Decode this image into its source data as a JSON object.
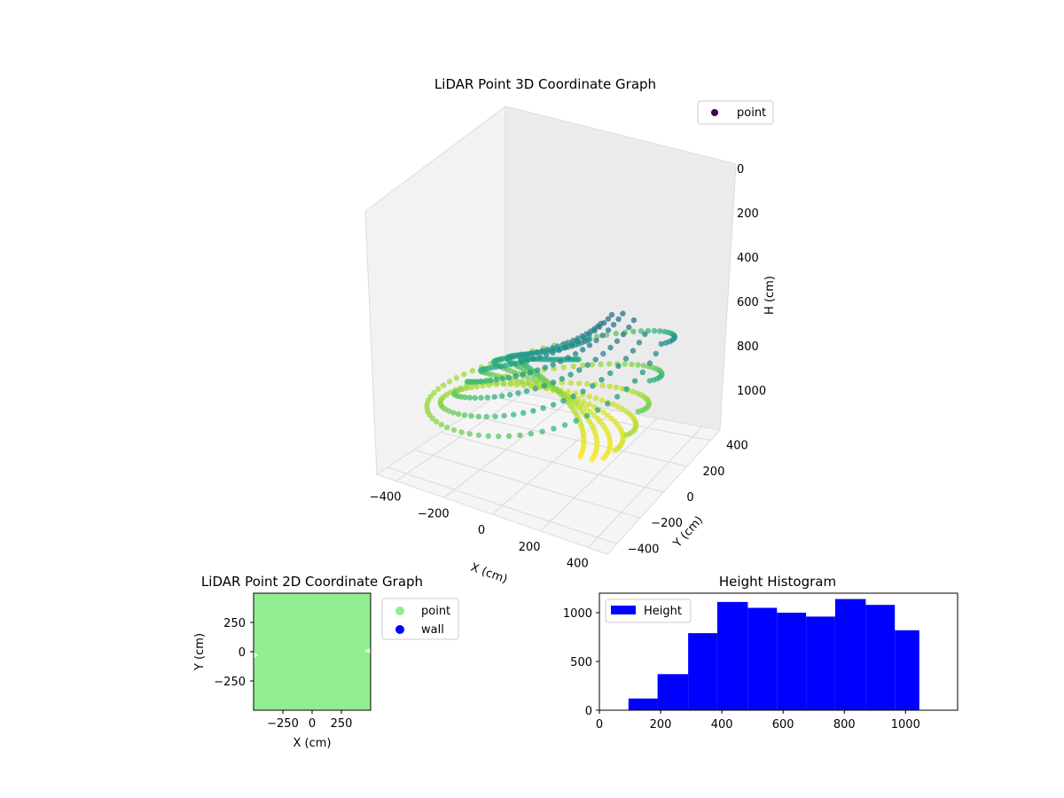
{
  "chart_data": [
    {
      "type": "scatter",
      "projection": "3d",
      "title": "LiDAR Point 3D Coordinate Graph",
      "xlabel": "X (cm)",
      "ylabel": "Y (cm)",
      "zlabel": "H (cm)",
      "xlim": [
        -480,
        480
      ],
      "ylim": [
        -480,
        480
      ],
      "zlim": [
        1150,
        0
      ],
      "x_ticks": [
        "−400",
        "−200",
        "0",
        "200",
        "400"
      ],
      "y_ticks": [
        "−400",
        "−200",
        "0",
        "200",
        "400"
      ],
      "z_ticks": [
        "0",
        "200",
        "400",
        "600",
        "800",
        "1000"
      ],
      "colormap": "viridis",
      "legend": {
        "position": "top-right",
        "entries": [
          {
            "label": "point",
            "color": "#440154"
          }
        ]
      },
      "grid": true,
      "series": [
        {
          "name": "point",
          "description_shape": "concentric bowl-like rings of LiDAR scan points",
          "rings": [
            {
              "radius": 470,
              "height_center": 80,
              "height_range": 960
            },
            {
              "radius": 420,
              "height_center": 160,
              "height_range": 900
            },
            {
              "radius": 370,
              "height_center": 240,
              "height_range": 840
            },
            {
              "radius": 320,
              "height_center": 320,
              "height_range": 780
            },
            {
              "radius": 270,
              "height_center": 400,
              "height_range": 720
            },
            {
              "radius": 220,
              "height_center": 480,
              "height_range": 660
            },
            {
              "radius": 170,
              "height_center": 560,
              "height_range": 600
            },
            {
              "radius": 120,
              "height_center": 640,
              "height_range": 540
            }
          ]
        }
      ]
    },
    {
      "type": "scatter",
      "title": "LiDAR Point 2D Coordinate Graph",
      "xlabel": "X (cm)",
      "ylabel": "Y (cm)",
      "xlim": [
        -500,
        500
      ],
      "ylim": [
        -500,
        500
      ],
      "x_ticks": [
        "−250",
        "0",
        "250"
      ],
      "y_ticks": [
        "250",
        "0",
        "−250"
      ],
      "legend": {
        "position": "outside-right",
        "entries": [
          {
            "label": "point",
            "color": "#90ee90"
          },
          {
            "label": "wall",
            "color": "#0000ff"
          }
        ]
      },
      "series": [
        {
          "name": "point",
          "color": "#90ee90",
          "fill": "full-area"
        },
        {
          "name": "wall",
          "color": "#0000ff",
          "points": []
        }
      ]
    },
    {
      "type": "bar",
      "title": "Height Histogram",
      "xlim": [
        0,
        1170
      ],
      "ylim": [
        0,
        1200
      ],
      "x_ticks": [
        "0",
        "200",
        "400",
        "600",
        "800",
        "1000"
      ],
      "y_ticks": [
        "0",
        "500",
        "1000"
      ],
      "legend": {
        "position": "top-left",
        "entries": [
          {
            "label": "Height",
            "color": "#0000ff"
          }
        ]
      },
      "bin_edges": [
        95,
        190,
        290,
        385,
        485,
        580,
        675,
        770,
        870,
        965,
        1045
      ],
      "series": [
        {
          "name": "Height",
          "color": "#0000ff",
          "values": [
            120,
            370,
            790,
            1110,
            1050,
            1000,
            960,
            1140,
            1080,
            820
          ]
        }
      ]
    }
  ]
}
